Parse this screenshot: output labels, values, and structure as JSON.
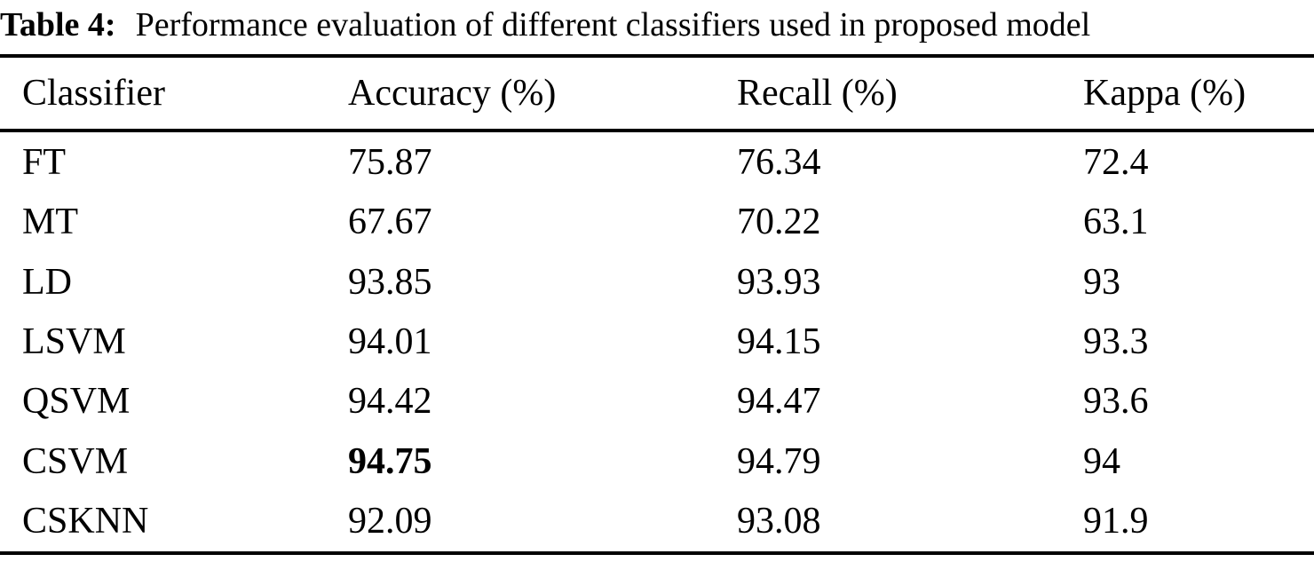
{
  "caption": {
    "label": "Table 4:",
    "text": "Performance evaluation of different classifiers used in proposed model"
  },
  "table": {
    "headers": {
      "classifier": "Classifier",
      "accuracy": "Accuracy (%)",
      "recall": "Recall (%)",
      "kappa": "Kappa (%)"
    },
    "rows": [
      {
        "classifier": "FT",
        "accuracy": "75.87",
        "recall": "76.34",
        "kappa": "72.4"
      },
      {
        "classifier": "MT",
        "accuracy": "67.67",
        "recall": "70.22",
        "kappa": "63.1"
      },
      {
        "classifier": "LD",
        "accuracy": "93.85",
        "recall": "93.93",
        "kappa": "93"
      },
      {
        "classifier": "LSVM",
        "accuracy": "94.01",
        "recall": "94.15",
        "kappa": "93.3"
      },
      {
        "classifier": "QSVM",
        "accuracy": "94.42",
        "recall": "94.47",
        "kappa": "93.6"
      },
      {
        "classifier": "CSVM",
        "accuracy": "94.75",
        "recall": "94.79",
        "kappa": "94"
      },
      {
        "classifier": "CSKNN",
        "accuracy": "92.09",
        "recall": "93.08",
        "kappa": "91.9"
      }
    ],
    "best_accuracy_row": "CSVM"
  },
  "colors": {
    "text": "#000000",
    "background": "#ffffff",
    "rule": "#000000"
  }
}
